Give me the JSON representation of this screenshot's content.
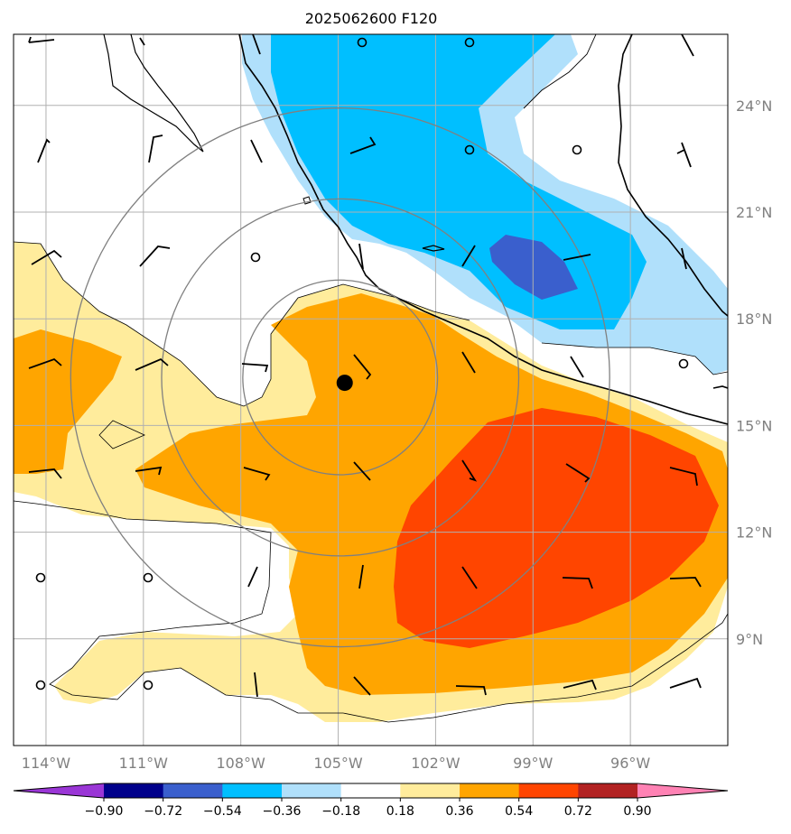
{
  "title": "2025062600 F120",
  "map": {
    "lon_range": [
      -115,
      -93
    ],
    "lat_range": [
      6,
      26
    ],
    "x_ticks": [
      {
        "value": -114,
        "label": "114°W"
      },
      {
        "value": -111,
        "label": "111°W"
      },
      {
        "value": -108,
        "label": "108°W"
      },
      {
        "value": -105,
        "label": "105°W"
      },
      {
        "value": -102,
        "label": "102°W"
      },
      {
        "value": -99,
        "label": "99°W"
      },
      {
        "value": -96,
        "label": "96°W"
      }
    ],
    "y_ticks": [
      {
        "value": 24,
        "label": "24°N"
      },
      {
        "value": 21,
        "label": "21°N"
      },
      {
        "value": 18,
        "label": "18°N"
      },
      {
        "value": 15,
        "label": "15°N"
      },
      {
        "value": 12,
        "label": "12°N"
      },
      {
        "value": 9,
        "label": "9°N"
      }
    ],
    "grid": true,
    "center_marker": {
      "lon": -104.8,
      "lat": 16.2
    },
    "range_rings_deg": [
      3,
      5.5,
      8.3
    ]
  },
  "colorbar": {
    "labels": [
      "−0.90",
      "−0.72",
      "−0.54",
      "−0.36",
      "−0.18",
      "0.18",
      "0.36",
      "0.54",
      "0.72",
      "0.90"
    ],
    "colors": [
      "#9a36d6",
      "#00008b",
      "#3a5fcd",
      "#00bfff",
      "#b0e0fb",
      "#ffffff",
      "#ffec9c",
      "#ffa500",
      "#ff4500",
      "#b22222",
      "#ff82b4"
    ]
  },
  "colors": {
    "strong_negative": "#3a5fcd",
    "negative": "#00bfff",
    "weak_negative": "#b0e0fb",
    "weak_positive": "#ffec9c",
    "positive": "#ffa500",
    "strong_positive": "#ff4500",
    "grid": "#b0b0b0",
    "rings": "#808080"
  }
}
